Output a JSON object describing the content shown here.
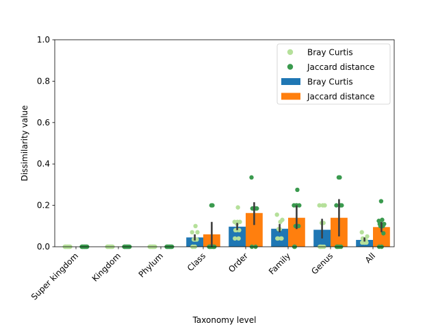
{
  "chart_data": {
    "type": "bar",
    "xlabel": "Taxonomy level",
    "ylabel": "Dissimilarity value",
    "ylim": [
      0,
      1.0
    ],
    "yticks": [
      0.0,
      0.2,
      0.4,
      0.6,
      0.8,
      1.0
    ],
    "ytick_labels": [
      "0.0",
      "0.2",
      "0.4",
      "0.6",
      "0.8",
      "1.0"
    ],
    "categories": [
      "Super kingdom",
      "Kingdom",
      "Phylum",
      "Class",
      "Order",
      "Family",
      "Genus",
      "All"
    ],
    "series": [
      {
        "name": "Bray Curtis",
        "color": "#1f77b4",
        "dot_color": "#b5e09a",
        "values": [
          0.0,
          0.0,
          0.0,
          0.045,
          0.097,
          0.087,
          0.082,
          0.033
        ],
        "ci": [
          [
            0,
            0
          ],
          [
            0,
            0
          ],
          [
            0,
            0
          ],
          [
            0.03,
            0.06
          ],
          [
            0.08,
            0.115
          ],
          [
            0.07,
            0.11
          ],
          [
            0.04,
            0.135
          ],
          [
            0.025,
            0.045
          ]
        ],
        "points": [
          [
            0,
            0,
            0,
            0,
            0,
            0,
            0,
            0,
            0,
            0
          ],
          [
            0,
            0,
            0,
            0,
            0,
            0,
            0,
            0,
            0,
            0
          ],
          [
            0,
            0,
            0,
            0,
            0,
            0,
            0,
            0,
            0,
            0
          ],
          [
            0,
            0.035,
            0.035,
            0.07,
            0.07,
            0.1,
            0.035,
            0.035,
            0,
            0
          ],
          [
            0.04,
            0.08,
            0.08,
            0.12,
            0.12,
            0.19,
            0.11,
            0.04,
            0.08,
            0.12
          ],
          [
            0.04,
            0.04,
            0.085,
            0.13,
            0.155,
            0.12,
            0.085,
            0.04,
            0.04,
            0.085
          ],
          [
            0,
            0,
            0,
            0.2,
            0.2,
            0.2,
            0.115,
            0.115,
            0,
            0
          ],
          [
            0.02,
            0.02,
            0.03,
            0.05,
            0.07,
            0.03,
            0.02,
            0.03,
            0.04,
            0.02
          ]
        ]
      },
      {
        "name": "Jaccard distance",
        "color": "#ff7f0e",
        "dot_color": "#3a9a4e",
        "values": [
          0.0,
          0.0,
          0.0,
          0.06,
          0.163,
          0.14,
          0.14,
          0.095
        ],
        "ci": [
          [
            0,
            0
          ],
          [
            0,
            0
          ],
          [
            0,
            0
          ],
          [
            0,
            0.12
          ],
          [
            0.105,
            0.215
          ],
          [
            0.085,
            0.2
          ],
          [
            0.05,
            0.23
          ],
          [
            0.07,
            0.12
          ]
        ],
        "points": [
          [
            0,
            0,
            0,
            0,
            0,
            0,
            0,
            0,
            0,
            0
          ],
          [
            0,
            0,
            0,
            0,
            0,
            0,
            0,
            0,
            0,
            0
          ],
          [
            0,
            0,
            0,
            0,
            0,
            0,
            0,
            0,
            0,
            0
          ],
          [
            0,
            0,
            0,
            0,
            0,
            0.2,
            0.2,
            0,
            0,
            0
          ],
          [
            0,
            0.185,
            0.185,
            0.185,
            0.335,
            0.185,
            0.185,
            0,
            0.185,
            0.185
          ],
          [
            0,
            0.1,
            0.1,
            0.2,
            0.2,
            0.275,
            0.2,
            0.1,
            0,
            0.2
          ],
          [
            0,
            0,
            0,
            0.2,
            0.2,
            0.335,
            0.335,
            0.2,
            0,
            0
          ],
          [
            0,
            0.065,
            0.1,
            0.11,
            0.125,
            0.13,
            0.22,
            0.1,
            0.11,
            0
          ]
        ]
      }
    ],
    "legend": {
      "position": "top-right",
      "entries": [
        {
          "label": "Bray Curtis",
          "kind": "dot",
          "color": "#b5e09a"
        },
        {
          "label": "Jaccard distance",
          "kind": "dot",
          "color": "#3a9a4e"
        },
        {
          "label": "Bray Curtis",
          "kind": "patch",
          "color": "#1f77b4"
        },
        {
          "label": "Jaccard distance",
          "kind": "patch",
          "color": "#ff7f0e"
        }
      ]
    },
    "grid": false
  }
}
